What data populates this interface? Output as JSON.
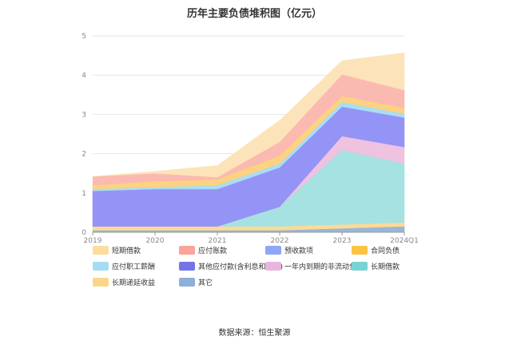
{
  "title": "历年主要负债堆积图（亿元）",
  "source": "数据来源：恒生聚源",
  "chart_data": {
    "type": "area",
    "stacked": true,
    "title": "历年主要负债堆积图（亿元）",
    "categories": [
      "2019",
      "2020",
      "2021",
      "2022",
      "2023",
      "2024Q1"
    ],
    "y_ticks": [
      "0",
      "1",
      "2",
      "3",
      "4",
      "5"
    ],
    "ylim": [
      0,
      5
    ],
    "grid": true,
    "legend_position": "bottom",
    "series": [
      {
        "name": "其它",
        "color": "#91b3d7",
        "values": [
          0.05,
          0.05,
          0.05,
          0.05,
          0.1,
          0.15
        ]
      },
      {
        "name": "长期递延收益",
        "color": "#fdd890",
        "values": [
          0.1,
          0.1,
          0.1,
          0.1,
          0.1,
          0.1
        ]
      },
      {
        "name": "长期借款",
        "color": "#a1e0df",
        "values": [
          0.0,
          0.0,
          0.0,
          0.5,
          1.9,
          1.5
        ]
      },
      {
        "name": "一年内到期的非流动负债",
        "color": "#eebfde",
        "values": [
          0.0,
          0.0,
          0.0,
          0.0,
          0.35,
          0.42
        ]
      },
      {
        "name": "其他应付款(含利息和股利)",
        "color": "#8e8ef5",
        "values": [
          0.9,
          0.95,
          0.95,
          1.0,
          0.75,
          0.75
        ]
      },
      {
        "name": "应付职工薪酬",
        "color": "#a6dcf2",
        "values": [
          0.05,
          0.05,
          0.1,
          0.1,
          0.12,
          0.1
        ]
      },
      {
        "name": "合同负债",
        "color": "#fdd07a",
        "values": [
          0.1,
          0.15,
          0.15,
          0.2,
          0.15,
          0.15
        ]
      },
      {
        "name": "应付账款",
        "color": "#fbb6ad",
        "values": [
          0.22,
          0.2,
          0.05,
          0.35,
          0.55,
          0.45
        ]
      },
      {
        "name": "短期借款",
        "color": "#fde2b5",
        "values": [
          0.0,
          0.05,
          0.3,
          0.55,
          0.35,
          0.95
        ]
      }
    ]
  },
  "legend_order": [
    "短期借款",
    "应付账款",
    "预收款项",
    "合同负债",
    "应付职工薪酬",
    "其他应付款(含利息和股利)",
    "一年内到期的非流动负债",
    "长期借款",
    "长期递延收益",
    "其它"
  ],
  "legend_colors": {
    "短期借款": "#fddc9c",
    "应付账款": "#fba49a",
    "预收款项": "#8ea6f5",
    "合同负债": "#fbc244",
    "应付职工薪酬": "#a6dcf2",
    "其他应付款(含利息和股利)": "#7474e8",
    "一年内到期的非流动负债": "#e8b6dd",
    "长期借款": "#7ad3d3",
    "长期递延收益": "#fbd68a",
    "其它": "#8fb0d6"
  }
}
